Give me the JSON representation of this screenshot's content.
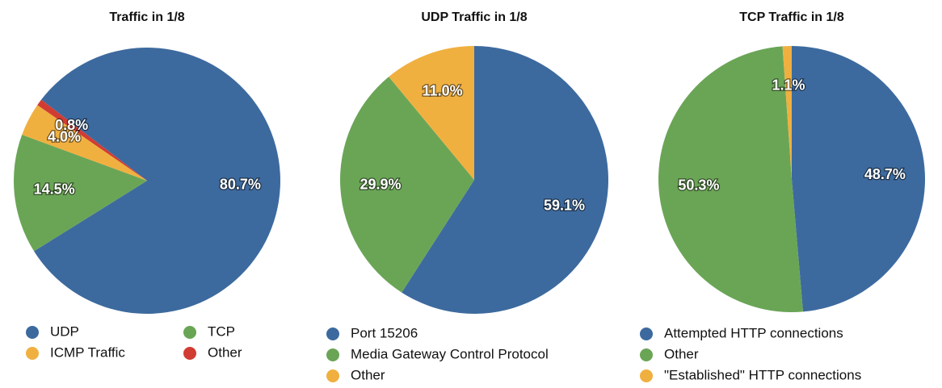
{
  "chart_data": [
    {
      "type": "pie",
      "title": "Traffic in 1/8",
      "categories": [
        "UDP",
        "TCP",
        "ICMP Traffic",
        "Other"
      ],
      "values": [
        80.7,
        14.5,
        4.0,
        0.8
      ],
      "value_labels": [
        "80.7%",
        "14.5%",
        "4.0%",
        "0.8%"
      ],
      "colors": [
        "#3d6a9e",
        "#6aa556",
        "#f0b040",
        "#d13c32"
      ]
    },
    {
      "type": "pie",
      "title": "UDP Traffic in 1/8",
      "categories": [
        "Port 15206",
        "Media Gateway Control Protocol",
        "Other"
      ],
      "values": [
        59.1,
        29.9,
        11.0
      ],
      "value_labels": [
        "59.1%",
        "29.9%",
        "11.0%"
      ],
      "colors": [
        "#3d6a9e",
        "#6aa556",
        "#f0b040"
      ]
    },
    {
      "type": "pie",
      "title": "TCP Traffic in 1/8",
      "categories": [
        "Attempted HTTP connections",
        "Other",
        "\"Established\" HTTP connections"
      ],
      "values": [
        48.7,
        50.3,
        1.1
      ],
      "value_labels": [
        "48.7%",
        "50.3%",
        "1.1%"
      ],
      "colors": [
        "#3d6a9e",
        "#6aa556",
        "#f0b040"
      ]
    }
  ]
}
